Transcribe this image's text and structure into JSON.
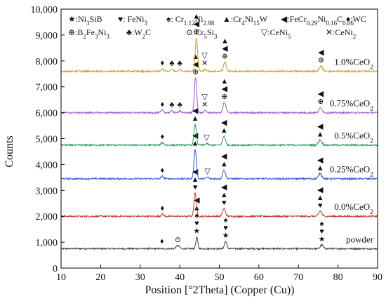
{
  "chart_data": {
    "type": "line",
    "xlabel": "Position [°2Theta] (Copper (Cu))",
    "ylabel": "Counts",
    "xlim": [
      10,
      90
    ],
    "ylim": [
      0,
      10000
    ],
    "x_ticks": [
      "10",
      "20",
      "30",
      "40",
      "50",
      "60",
      "70",
      "80",
      "90"
    ],
    "y_ticks": [
      "0",
      "1,000",
      "2,000",
      "3,000",
      "4,000",
      "5,000",
      "6,000",
      "7,000",
      "8,000",
      "9,000",
      "10,000"
    ],
    "grid": false,
    "legend_items": [
      {
        "symbol": "★",
        "text": ":Ni3SiB"
      },
      {
        "symbol": "♥",
        "text": ": FeNi3"
      },
      {
        "symbol": "♠",
        "text": ": Cr1.12Ni2.88"
      },
      {
        "symbol": "▲",
        "text": ":Cr4Ni15W"
      },
      {
        "symbol": "◀",
        "text": ":FeCr0.29Ni0.16C0.06"
      },
      {
        "symbol": "♦",
        "text": ":WC"
      },
      {
        "symbol": "⊕",
        "text": ":B2Fe3Ni3"
      },
      {
        "symbol": "♣",
        "text": ":W2C"
      },
      {
        "symbol": "⊙",
        "text": ":Cr5Si3"
      },
      {
        "symbol": "▽",
        "text": ":CeNi5"
      },
      {
        "symbol": "✕",
        "text": ":CeNi2"
      }
    ],
    "series": [
      {
        "name": "powder",
        "color": "#404040",
        "baseline": 750,
        "peaks": [
          [
            39.5,
            120,
            0.4
          ],
          [
            44.3,
            450,
            0.25
          ],
          [
            51.6,
            280,
            0.3
          ],
          [
            75.9,
            150,
            0.35
          ]
        ],
        "markers": [
          {
            "x": 35.5,
            "symbols": [
              "♦"
            ]
          },
          {
            "x": 39.5,
            "symbols": [
              "⊙"
            ]
          },
          {
            "x": 44.3,
            "symbols": [
              "★",
              "♥",
              "♠",
              "▲",
              "◀"
            ]
          },
          {
            "x": 51.6,
            "symbols": [
              "★",
              "♥",
              "♠"
            ]
          },
          {
            "x": 75.9,
            "symbols": [
              "★",
              "♥",
              "♠"
            ]
          }
        ]
      },
      {
        "name": "0.0%CeO2",
        "color": "#c0392b",
        "baseline": 2000,
        "peaks": [
          [
            35.6,
            80,
            0.3
          ],
          [
            43.9,
            900,
            0.3
          ],
          [
            51.2,
            300,
            0.35
          ],
          [
            75.5,
            200,
            0.4
          ]
        ],
        "markers": [
          {
            "x": 35.6,
            "symbols": [
              "♦"
            ]
          },
          {
            "x": 43.9,
            "symbols": [
              "♥",
              "▲",
              "◀"
            ]
          },
          {
            "x": 51.2,
            "symbols": [
              "♥",
              "▲",
              "◀"
            ]
          },
          {
            "x": 75.5,
            "symbols": [
              "♥",
              "▲",
              "◀"
            ]
          }
        ]
      },
      {
        "name": "0.25%CeO2",
        "color": "#2d5bd7",
        "baseline": 3450,
        "peaks": [
          [
            35.6,
            100,
            0.3
          ],
          [
            43.9,
            1150,
            0.3
          ],
          [
            47.0,
            60,
            0.3
          ],
          [
            51.2,
            350,
            0.35
          ],
          [
            75.5,
            200,
            0.4
          ]
        ],
        "markers": [
          {
            "x": 35.6,
            "symbols": [
              "♦"
            ]
          },
          {
            "x": 43.9,
            "symbols": [
              "▲",
              "◀"
            ]
          },
          {
            "x": 47.0,
            "symbols": [
              "▽"
            ]
          },
          {
            "x": 51.2,
            "symbols": [
              "▲",
              "◀"
            ]
          },
          {
            "x": 75.5,
            "symbols": [
              "▲",
              "◀"
            ]
          }
        ]
      },
      {
        "name": "0.5%CeO2",
        "color": "#2e9a5e",
        "baseline": 4750,
        "peaks": [
          [
            35.6,
            100,
            0.3
          ],
          [
            43.9,
            800,
            0.3
          ],
          [
            46.8,
            60,
            0.3
          ],
          [
            51.2,
            350,
            0.35
          ],
          [
            75.5,
            200,
            0.4
          ]
        ],
        "markers": [
          {
            "x": 35.6,
            "symbols": [
              "♦"
            ]
          },
          {
            "x": 43.9,
            "symbols": [
              "▲",
              "◀"
            ]
          },
          {
            "x": 46.8,
            "symbols": [
              "▽"
            ]
          },
          {
            "x": 51.2,
            "symbols": [
              "▲",
              "◀"
            ]
          },
          {
            "x": 75.5,
            "symbols": [
              "▲",
              "◀"
            ]
          }
        ]
      },
      {
        "name": "0.75%CeO2",
        "color": "#9b59d0",
        "baseline": 6000,
        "peaks": [
          [
            35.6,
            100,
            0.3
          ],
          [
            38.0,
            80,
            0.3
          ],
          [
            40.0,
            80,
            0.3
          ],
          [
            44.0,
            1350,
            0.3
          ],
          [
            46.5,
            80,
            0.3
          ],
          [
            51.3,
            400,
            0.35
          ],
          [
            75.6,
            200,
            0.4
          ]
        ],
        "markers": [
          {
            "x": 35.6,
            "symbols": [
              "♦"
            ]
          },
          {
            "x": 38.0,
            "symbols": [
              "♣"
            ]
          },
          {
            "x": 40.0,
            "symbols": [
              "♣"
            ]
          },
          {
            "x": 44.0,
            "symbols": [
              "⊕",
              "◀",
              "▲"
            ]
          },
          {
            "x": 46.3,
            "symbols": [
              "✕",
              "▽"
            ]
          },
          {
            "x": 51.3,
            "symbols": [
              "⊕",
              "◀",
              "▲"
            ]
          },
          {
            "x": 75.6,
            "symbols": [
              "⊕",
              "◀"
            ]
          }
        ]
      },
      {
        "name": "1.0%CeO2",
        "color": "#c8a020",
        "baseline": 7600,
        "peaks": [
          [
            35.6,
            100,
            0.3
          ],
          [
            38.0,
            80,
            0.3
          ],
          [
            40.0,
            80,
            0.3
          ],
          [
            44.2,
            1300,
            0.3
          ],
          [
            46.5,
            80,
            0.3
          ],
          [
            51.4,
            350,
            0.35
          ],
          [
            75.7,
            200,
            0.4
          ]
        ],
        "markers": [
          {
            "x": 35.6,
            "symbols": [
              "♦"
            ]
          },
          {
            "x": 38.0,
            "symbols": [
              "♣"
            ]
          },
          {
            "x": 40.0,
            "symbols": [
              "♣"
            ]
          },
          {
            "x": 44.2,
            "symbols": [
              "⊕",
              "◀",
              "▲"
            ]
          },
          {
            "x": 46.3,
            "symbols": [
              "✕",
              "▽"
            ]
          },
          {
            "x": 51.4,
            "symbols": [
              "⊕",
              "◀",
              "▲"
            ]
          },
          {
            "x": 75.7,
            "symbols": [
              "⊕",
              "◀"
            ]
          }
        ]
      }
    ]
  }
}
